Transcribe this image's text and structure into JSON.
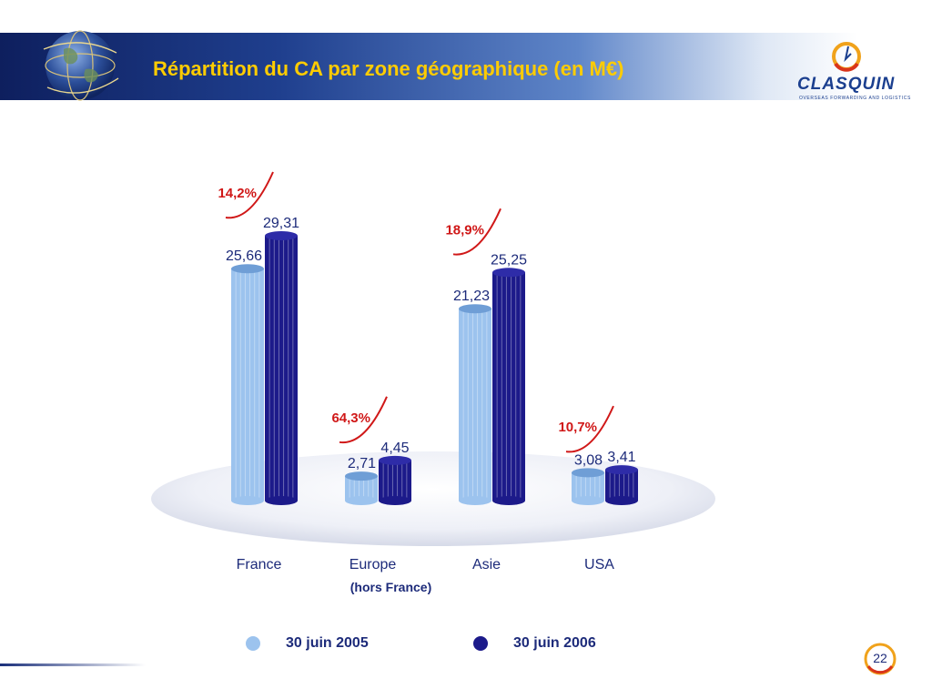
{
  "slide": {
    "title": "Répartition du CA par zone géographique (en M€)",
    "page_number": "22"
  },
  "logo": {
    "name": "CLASQUIN",
    "tagline": "OVERSEAS FORWARDING AND LOGISTICS"
  },
  "colors": {
    "series_2005": "#9cc3ee",
    "series_2006": "#1c1a8a",
    "growth": "#d01818",
    "header_dark": "#0e1f5e",
    "title": "#ffcc00"
  },
  "chart_data": {
    "type": "bar",
    "title": "Répartition du CA par zone géographique (en M€)",
    "categories": [
      "France",
      "Europe",
      "Asie",
      "USA"
    ],
    "category_sublabels": [
      "",
      "(hors France)",
      "",
      ""
    ],
    "series": [
      {
        "name": "30 juin 2005",
        "values": [
          25.66,
          2.71,
          21.23,
          3.08
        ],
        "labels": [
          "25,66",
          "2,71",
          "21,23",
          "3,08"
        ]
      },
      {
        "name": "30 juin 2006",
        "values": [
          29.31,
          4.45,
          25.25,
          3.41
        ],
        "labels": [
          "29,31",
          "4,45",
          "25,25",
          "3,41"
        ]
      }
    ],
    "growth_labels": [
      "14,2%",
      "64,3%",
      "18,9%",
      "10,7%"
    ],
    "ylim": [
      0,
      30
    ],
    "grid": false,
    "legend_position": "bottom"
  }
}
